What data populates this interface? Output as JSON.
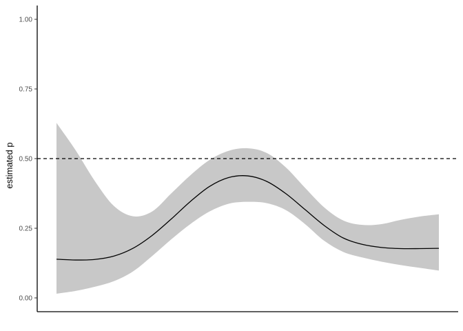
{
  "chart_data": {
    "type": "line",
    "title": "",
    "xlabel": "",
    "ylabel": "estimated p",
    "xlim": [
      0,
      1
    ],
    "ylim": [
      0,
      1
    ],
    "yticks": [
      0,
      0.25,
      0.5,
      0.75,
      1
    ],
    "ytick_labels": [
      "0.00",
      "0.25",
      "0.50",
      "0.75",
      "1.00"
    ],
    "grid": false,
    "reference_line": {
      "y": 0.5,
      "style": "dashed"
    },
    "x": [
      0,
      0.05,
      0.1,
      0.15,
      0.2,
      0.25,
      0.3,
      0.35,
      0.4,
      0.45,
      0.5,
      0.55,
      0.6,
      0.65,
      0.7,
      0.75,
      0.8,
      0.85,
      0.9,
      0.95,
      1.0
    ],
    "series": [
      {
        "values": [
          0.139,
          0.136,
          0.138,
          0.15,
          0.178,
          0.224,
          0.283,
          0.346,
          0.4,
          0.432,
          0.438,
          0.418,
          0.374,
          0.317,
          0.26,
          0.215,
          0.192,
          0.181,
          0.177,
          0.177,
          0.178
        ],
        "lower": [
          0.015,
          0.025,
          0.04,
          0.06,
          0.095,
          0.15,
          0.21,
          0.265,
          0.31,
          0.338,
          0.345,
          0.34,
          0.315,
          0.265,
          0.205,
          0.165,
          0.145,
          0.13,
          0.118,
          0.108,
          0.098
        ],
        "upper": [
          0.628,
          0.53,
          0.42,
          0.33,
          0.293,
          0.31,
          0.375,
          0.44,
          0.495,
          0.528,
          0.537,
          0.52,
          0.468,
          0.395,
          0.325,
          0.278,
          0.262,
          0.265,
          0.28,
          0.292,
          0.3
        ]
      }
    ],
    "colors": {
      "line": "#000000",
      "ribbon": "#c8c8c8",
      "axis": "#000000"
    }
  }
}
